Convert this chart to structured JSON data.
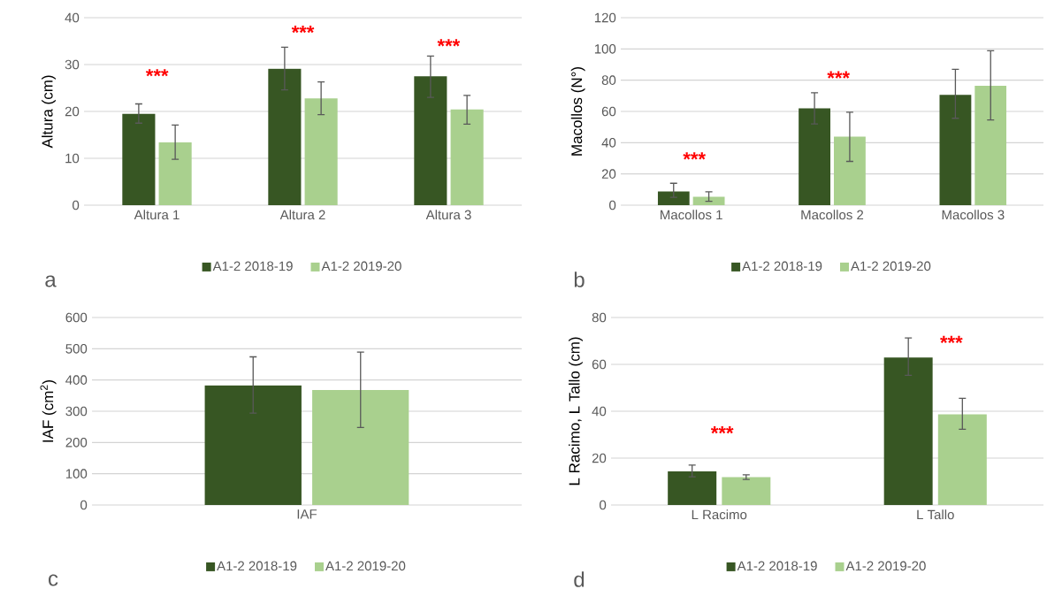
{
  "chart_data": [
    {
      "type": "bar",
      "ylabel": "Altura (cm)",
      "categories": [
        "Altura 1",
        "Altura 2",
        "Altura 3"
      ],
      "series": [
        {
          "name": "A1-2 2018-19",
          "color": "#375623",
          "values": [
            19.5,
            29.1,
            27.5
          ],
          "errors": [
            [
              17.5,
              21.6
            ],
            [
              24.6,
              33.7
            ],
            [
              23.0,
              31.8
            ]
          ]
        },
        {
          "name": "A1-2 2019-20",
          "color": "#a9d08e",
          "values": [
            13.4,
            22.8,
            20.4
          ],
          "errors": [
            [
              9.8,
              17.1
            ],
            [
              19.3,
              26.3
            ],
            [
              17.3,
              23.4
            ]
          ]
        }
      ],
      "ylim": [
        0,
        40
      ],
      "yticks": [
        0,
        10,
        20,
        30,
        40
      ],
      "grid": "y",
      "legend": "bottom",
      "annotations": [
        "***",
        "***",
        "***",
        "a"
      ]
    },
    {
      "type": "bar",
      "ylabel": "Macollos (N°)",
      "categories": [
        "Macollos 1",
        "Macollos 2",
        "Macollos 3"
      ],
      "series": [
        {
          "name": "A1-2 2018-19",
          "color": "#375623",
          "values": [
            8.8,
            62.0,
            70.6
          ],
          "errors": [
            [
              5.0,
              14.0
            ],
            [
              52.0,
              72.0
            ],
            [
              55.6,
              87.0
            ]
          ]
        },
        {
          "name": "A1-2 2019-20",
          "color": "#a9d08e",
          "values": [
            5.4,
            43.9,
            76.4
          ],
          "errors": [
            [
              2.5,
              8.5
            ],
            [
              28.0,
              59.5
            ],
            [
              54.5,
              98.8
            ]
          ]
        }
      ],
      "ylim": [
        0,
        120
      ],
      "yticks": [
        0,
        20,
        40,
        60,
        80,
        100,
        120
      ],
      "grid": "y",
      "legend": "bottom",
      "annotations": [
        "***",
        "***",
        "b"
      ]
    },
    {
      "type": "bar",
      "ylabel": "IAF (cm$^{2}$)",
      "categories": [
        "IAF"
      ],
      "series": [
        {
          "name": "A1-2 2018-19",
          "color": "#375623",
          "values": [
            383
          ],
          "errors": [
            [
              294,
              474
            ]
          ]
        },
        {
          "name": "A1-2 2019-20",
          "color": "#a9d08e",
          "values": [
            368
          ],
          "errors": [
            [
              248,
              489
            ]
          ]
        }
      ],
      "ylim": [
        0,
        600
      ],
      "yticks": [
        0,
        100,
        200,
        300,
        400,
        500,
        600
      ],
      "grid": "y",
      "legend": "bottom",
      "annotations": [
        "c"
      ]
    },
    {
      "type": "bar",
      "ylabel": "L Racimo, L Tallo (cm)",
      "categories": [
        "L Racimo",
        "L Tallo"
      ],
      "series": [
        {
          "name": "A1-2 2018-19",
          "color": "#375623",
          "values": [
            14.3,
            62.9
          ],
          "errors": [
            [
              12.0,
              17.0
            ],
            [
              55.3,
              71.3
            ]
          ]
        },
        {
          "name": "A1-2 2019-20",
          "color": "#a9d08e",
          "values": [
            11.9,
            38.7
          ],
          "errors": [
            [
              10.9,
              12.9
            ],
            [
              32.3,
              45.5
            ]
          ]
        }
      ],
      "ylim": [
        0,
        80
      ],
      "yticks": [
        0,
        20,
        40,
        60,
        80
      ],
      "grid": "y",
      "legend": "bottom",
      "annotations": [
        "***",
        "***",
        "d"
      ]
    }
  ]
}
